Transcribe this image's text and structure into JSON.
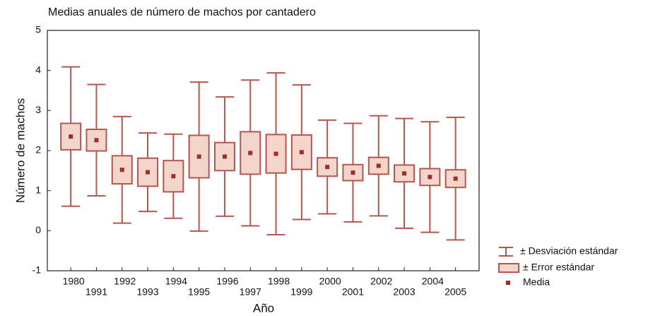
{
  "chart_data": {
    "type": "box",
    "title": "Medias anuales de número de machos por cantadero",
    "x_label": "Año",
    "y_label": "Número de machos",
    "categories": [
      "1980",
      "1991",
      "1992",
      "1993",
      "1994",
      "1995",
      "1996",
      "1997",
      "1998",
      "1999",
      "2000",
      "2001",
      "2002",
      "2003",
      "2004",
      "2005"
    ],
    "series": [
      {
        "name": "Media",
        "color": "#9e2f25",
        "values": [
          2.35,
          2.26,
          1.52,
          1.46,
          1.36,
          1.85,
          1.85,
          1.94,
          1.92,
          1.96,
          1.59,
          1.45,
          1.62,
          1.43,
          1.34,
          1.3
        ]
      },
      {
        "name": "± Error estándar",
        "color": "#f3d5cb",
        "values": [
          0.33,
          0.27,
          0.35,
          0.35,
          0.39,
          0.53,
          0.35,
          0.53,
          0.48,
          0.43,
          0.23,
          0.2,
          0.21,
          0.21,
          0.21,
          0.22
        ]
      },
      {
        "name": "± Desviación estándar",
        "color": "#b5574c",
        "values": [
          1.74,
          1.39,
          1.33,
          0.98,
          1.05,
          1.86,
          1.49,
          1.82,
          2.02,
          1.68,
          1.17,
          1.23,
          1.25,
          1.37,
          1.38,
          1.53
        ]
      }
    ],
    "ylim": [
      -1,
      5
    ],
    "yticks": [
      -1,
      0,
      1,
      2,
      3,
      4,
      5
    ]
  }
}
